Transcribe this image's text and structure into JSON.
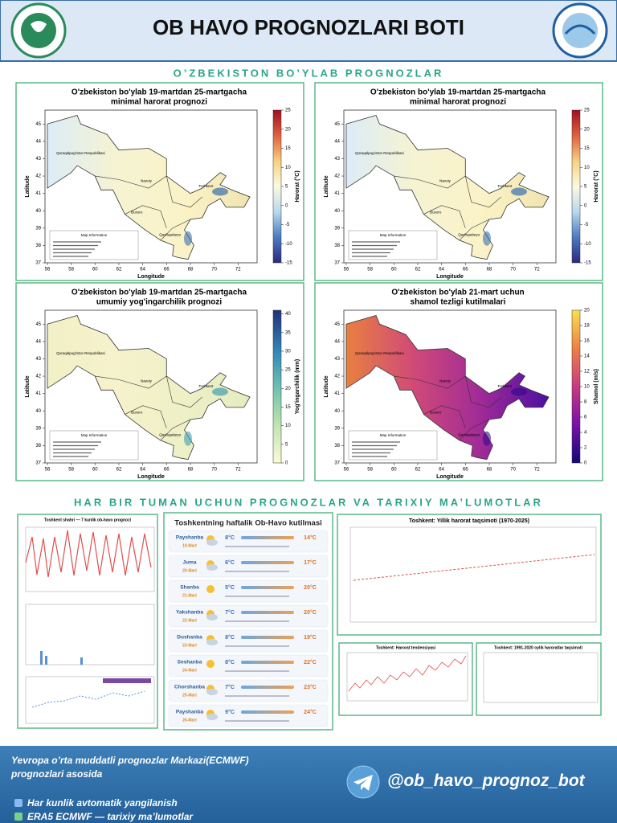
{
  "header": {
    "title": "OB HAVO PROGNOZLARI BOTI"
  },
  "sections": [
    "O’ZBEKISTON BO’YLAB PROGNOZLAR",
    "HAR BIR TUMAN UCHUN PROGNOZLAR VA TARIXIY MA’LUMOTLAR"
  ],
  "map_axes": {
    "xlabel": "Longitude",
    "ylabel": "Latitude",
    "xlim": [
      55.8,
      73.6
    ],
    "ylim": [
      37,
      45.8
    ],
    "xticks": [
      56,
      58,
      60,
      62,
      64,
      66,
      68,
      70,
      72
    ],
    "yticks": [
      37,
      38,
      39,
      40,
      41,
      42,
      43,
      44,
      45
    ],
    "info_title": "Map Information",
    "regions": [
      "Qoraqalpog'iston Respublikasi",
      "Navoiy",
      "Buxoro",
      "Qashqadaryo",
      "Toshkent"
    ]
  },
  "maps": [
    {
      "title": "O'zbekiston bo'ylab 19-martdan 25-martgacha",
      "subtitle": "minimal harorat prognozi",
      "colorbar_label": "Harorat (°C)",
      "colorbar_lim": [
        -15,
        25
      ],
      "colorbar_ticks": [
        -15,
        -10,
        -5,
        0,
        5,
        10,
        15,
        20,
        25
      ],
      "palette": "temp"
    },
    {
      "title": "O'zbekiston bo'ylab 19-martdan 25-martgacha",
      "subtitle": "minimal harorat prognozi",
      "colorbar_label": "Harorat (°C)",
      "colorbar_lim": [
        -15,
        25
      ],
      "colorbar_ticks": [
        -15,
        -10,
        -5,
        0,
        5,
        10,
        15,
        20,
        25
      ],
      "palette": "temp"
    },
    {
      "title": "O'zbekiston bo'ylab 19-martdan 25-martgacha",
      "subtitle": "umumiy yog'ingarchilik prognozi",
      "colorbar_label": "Yog'ingarchilik (mm)",
      "colorbar_lim": [
        0,
        41
      ],
      "colorbar_ticks": [
        0,
        5,
        10,
        15,
        20,
        25,
        30,
        35,
        40
      ],
      "palette": "precip"
    },
    {
      "title": "O'zbekiston bo'ylab 21-mart uchun",
      "subtitle": "shamol tezligi kutilmalari",
      "colorbar_label": "Shamol (m/s)",
      "colorbar_lim": [
        0,
        20
      ],
      "colorbar_ticks": [
        0,
        2,
        4,
        6,
        8,
        10,
        12,
        14,
        16,
        18,
        20
      ],
      "palette": "wind"
    }
  ],
  "weekly": {
    "title": "Toshkentning haftalik Ob-Havo kutilmasi",
    "days": [
      {
        "day": "Payshanba",
        "date": "19-Mart",
        "min": "8°C",
        "max": "14°C"
      },
      {
        "day": "Juma",
        "date": "20-Mart",
        "min": "6°C",
        "max": "17°C"
      },
      {
        "day": "Shanba",
        "date": "21-Mart",
        "min": "5°C",
        "max": "20°C"
      },
      {
        "day": "Yakshanba",
        "date": "22-Mart",
        "min": "7°C",
        "max": "20°C"
      },
      {
        "day": "Dushanba",
        "date": "23-Mart",
        "min": "8°C",
        "max": "19°C"
      },
      {
        "day": "Seshanba",
        "date": "24-Mart",
        "min": "8°C",
        "max": "22°C"
      },
      {
        "day": "Chorshanba",
        "date": "25-Mart",
        "min": "7°C",
        "max": "23°C"
      },
      {
        "day": "Payshanba",
        "date": "26-Mart",
        "min": "9°C",
        "max": "24°C"
      }
    ]
  },
  "charts": {
    "left_title": "Toshkent shahri — 7 kunlik ob-havo prognozi",
    "annual_title": "Toshkent: Yillik harorat taqsimoti (1970-2025)",
    "trend_title": "Toshkent: Harorat tendensiyasi",
    "monthly_title": "Toshkent: 1991-2020 oylik haroratlar taqsimoti"
  },
  "footer": {
    "source": "Yevropa o’rta muddatli prognozlar Markazi(ECMWF) prognozlari asosida",
    "handle": "@ob_havo_prognoz_bot",
    "features": [
      "Har kunlik avtomatik yangilanish",
      "ERA5 ECMWF — tarixiy ma’lumotlar"
    ]
  }
}
